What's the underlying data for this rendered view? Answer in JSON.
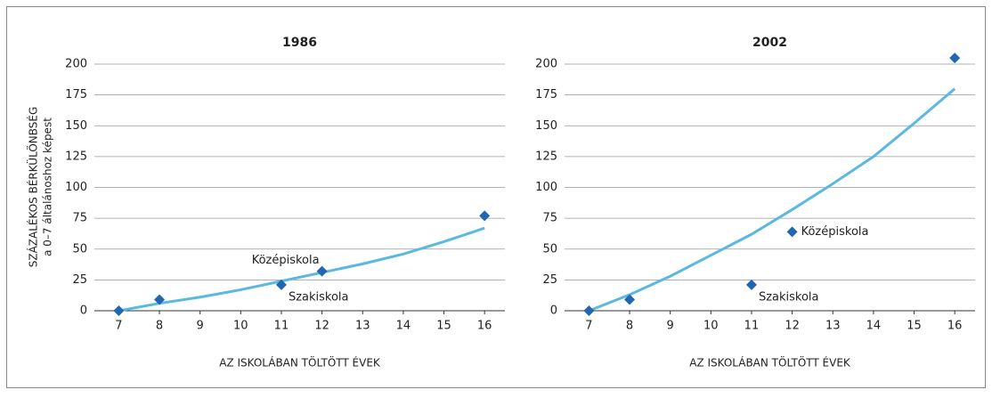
{
  "chart_data": [
    {
      "type": "scatter",
      "title": "1986",
      "xlabel": "AZ ISKOLÁBAN TÖLTÖTT ÉVEK",
      "ylabel": [
        "SZÁZALÉKOS BÉRKÜLÖNBSÉG",
        "a 0–7 általánoshoz képest"
      ],
      "xlim": [
        6.4,
        16.5
      ],
      "ylim": [
        0,
        200
      ],
      "xticks": [
        7,
        8,
        9,
        10,
        11,
        12,
        13,
        14,
        15,
        16
      ],
      "yticks": [
        0,
        25,
        50,
        75,
        100,
        125,
        150,
        175,
        200
      ],
      "grid": true,
      "series": [
        {
          "type": "line",
          "color": "#5bb8e0",
          "x": [
            7,
            8,
            9,
            10,
            11,
            12,
            13,
            14,
            15,
            16
          ],
          "values": [
            0,
            6,
            11,
            17,
            24,
            31,
            38,
            46,
            56,
            67
          ]
        },
        {
          "type": "scatter",
          "color": "#2166b0",
          "x": [
            7,
            8,
            11,
            12,
            16
          ],
          "values": [
            0,
            9,
            21,
            32,
            77
          ],
          "point_labels": [
            null,
            null,
            "Szakiskola",
            "Középiskola",
            null
          ]
        }
      ]
    },
    {
      "type": "scatter",
      "title": "2002",
      "xlabel": "AZ ISKOLÁBAN TÖLTÖTT ÉVEK",
      "xlim": [
        6.4,
        16.5
      ],
      "ylim": [
        0,
        200
      ],
      "xticks": [
        7,
        8,
        9,
        10,
        11,
        12,
        13,
        14,
        15,
        16
      ],
      "yticks": [
        0,
        25,
        50,
        75,
        100,
        125,
        150,
        175,
        200
      ],
      "grid": true,
      "series": [
        {
          "type": "line",
          "color": "#5bb8e0",
          "x": [
            7,
            8,
            9,
            10,
            11,
            12,
            13,
            14,
            15,
            16
          ],
          "values": [
            0,
            13,
            28,
            45,
            62,
            82,
            103,
            125,
            152,
            180
          ]
        },
        {
          "type": "scatter",
          "color": "#2166b0",
          "x": [
            7,
            8,
            11,
            12,
            16
          ],
          "values": [
            0,
            9,
            21,
            64,
            205
          ],
          "point_labels": [
            null,
            null,
            "Szakiskola",
            "Középiskola",
            null
          ]
        }
      ]
    }
  ]
}
